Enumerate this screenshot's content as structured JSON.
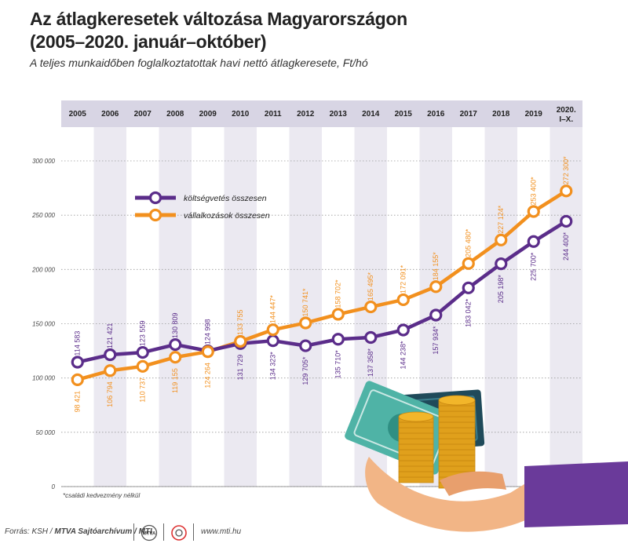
{
  "header": {
    "title_line1": "Az átlagkeresetek változása Magyarországon",
    "title_line2": "(2005–2020. január–október)",
    "subtitle": "A teljes munkaidőben foglalkoztatottak havi nettó átlagkeresete, Ft/hó"
  },
  "chart_data": {
    "type": "line",
    "categories": [
      "2005",
      "2006",
      "2007",
      "2008",
      "2009",
      "2010",
      "2011",
      "2012",
      "2013",
      "2014",
      "2015",
      "2016",
      "2017",
      "2018",
      "2019",
      "2020."
    ],
    "last_category_sub": "I–X.",
    "y_ticks": [
      "0",
      "50 000",
      "100 000",
      "150 000",
      "200 000",
      "250 000",
      "300 000"
    ],
    "ylim": [
      0,
      300000
    ],
    "grid": true,
    "legend_position": "top-left",
    "series": [
      {
        "name": "költségvetés összesen",
        "color": "#5b2d8a",
        "values": [
          114583,
          121421,
          123559,
          130809,
          124998,
          131729,
          134323,
          129705,
          135710,
          137358,
          144238,
          157934,
          183042,
          205198,
          225700,
          244400
        ],
        "labels": [
          "114 583",
          "121 421",
          "123 559",
          "130 809",
          "124 998",
          "131 729",
          "134 323*",
          "129 705*",
          "135 710*",
          "137 358*",
          "144 238*",
          "157 934*",
          "183 042*",
          "205 198*",
          "225 700*",
          "244 400*"
        ]
      },
      {
        "name": "vállalkozások összesen",
        "color": "#f2901e",
        "values": [
          98421,
          106794,
          110737,
          119155,
          124264,
          133755,
          144447,
          150741,
          158702,
          165495,
          172091,
          184155,
          205480,
          227124,
          253400,
          272300
        ],
        "labels": [
          "98 421",
          "106 794",
          "110 737",
          "119 155",
          "124 264",
          "133 755",
          "144 447*",
          "150 741*",
          "158 702*",
          "165 495*",
          "172 091*",
          "184 155*",
          "205 480*",
          "227 124*",
          "253 400*",
          "272 300*"
        ]
      }
    ],
    "footnote": "*családi kedvezmény nélkül"
  },
  "footer": {
    "source_prefix": "Forrás: KSH / ",
    "source_bold": "MTVA Sajtóarchívum / MTI",
    "logo1_text": "MTVA",
    "website": "www.mti.hu"
  },
  "colors": {
    "header_band": "#d8d5e4",
    "column_shade": "#ebe9f1",
    "purple": "#5b2d8a",
    "orange": "#f2901e",
    "sleeve": "#6a3a9a",
    "hand": "#f2b586",
    "coin": "#f2b62a",
    "note": "#4fb3a6"
  }
}
